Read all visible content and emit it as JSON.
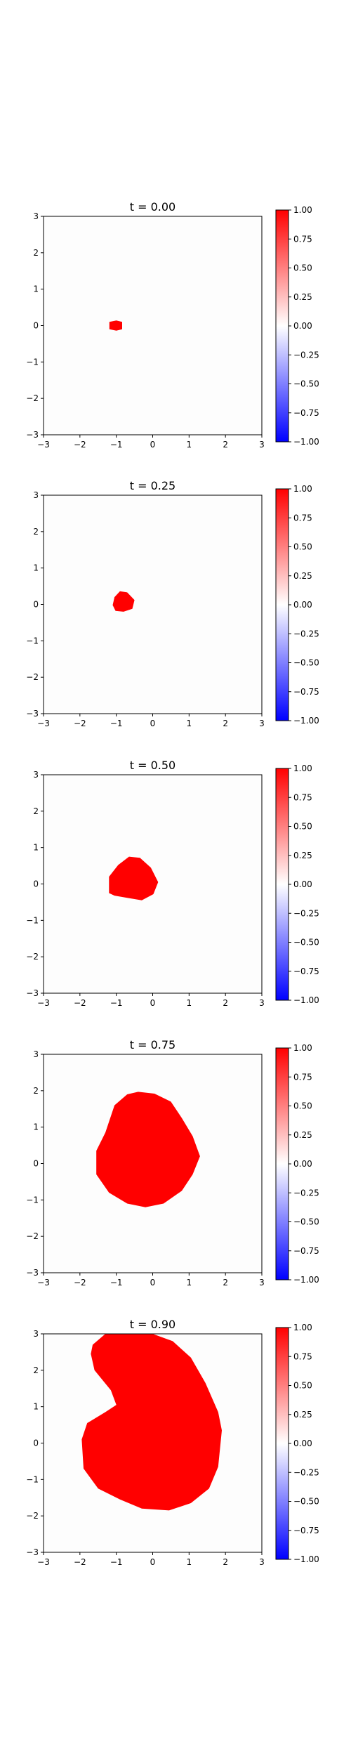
{
  "chart_data": [
    {
      "type": "heatmap",
      "title": "t = 0.00",
      "xlim": [
        -3,
        3
      ],
      "ylim": [
        -3,
        3
      ],
      "xticks": [
        "−3",
        "−2",
        "−1",
        "0",
        "1",
        "2",
        "3"
      ],
      "yticks": [
        "3",
        "2",
        "1",
        "0",
        "−1",
        "−2",
        "−3"
      ],
      "fill_color": "#ff0000",
      "region": [
        [
          -1.19,
          -0.1
        ],
        [
          -1.19,
          0.1
        ],
        [
          -1.0,
          0.14
        ],
        [
          -0.84,
          0.1
        ],
        [
          -0.84,
          -0.1
        ],
        [
          -1.0,
          -0.14
        ]
      ],
      "colorbar": {
        "vmin": -1.0,
        "vmax": 1.0,
        "ticks": [
          "1.00",
          "0.75",
          "0.50",
          "0.25",
          "0.00",
          "−0.25",
          "−0.50",
          "−0.75",
          "−1.00"
        ]
      }
    },
    {
      "type": "heatmap",
      "title": "t = 0.25",
      "xlim": [
        -3,
        3
      ],
      "ylim": [
        -3,
        3
      ],
      "xticks": [
        "−3",
        "−2",
        "−1",
        "0",
        "1",
        "2",
        "3"
      ],
      "yticks": [
        "3",
        "2",
        "1",
        "0",
        "−1",
        "−2",
        "−3"
      ],
      "fill_color": "#ff0000",
      "region": [
        [
          -1.1,
          -0.02
        ],
        [
          -1.05,
          0.2
        ],
        [
          -0.9,
          0.36
        ],
        [
          -0.7,
          0.33
        ],
        [
          -0.5,
          0.12
        ],
        [
          -0.56,
          -0.12
        ],
        [
          -0.8,
          -0.2
        ],
        [
          -1.02,
          -0.18
        ]
      ],
      "colorbar": {
        "vmin": -1.0,
        "vmax": 1.0,
        "ticks": [
          "1.00",
          "0.75",
          "0.50",
          "0.25",
          "0.00",
          "−0.25",
          "−0.50",
          "−0.75",
          "−1.00"
        ]
      }
    },
    {
      "type": "heatmap",
      "title": "t = 0.50",
      "xlim": [
        -3,
        3
      ],
      "ylim": [
        -3,
        3
      ],
      "xticks": [
        "−3",
        "−2",
        "−1",
        "0",
        "1",
        "2",
        "3"
      ],
      "yticks": [
        "3",
        "2",
        "1",
        "0",
        "−1",
        "−2",
        "−3"
      ],
      "fill_color": "#ff0000",
      "region": [
        [
          -1.2,
          -0.25
        ],
        [
          -1.2,
          0.2
        ],
        [
          -0.95,
          0.52
        ],
        [
          -0.65,
          0.75
        ],
        [
          -0.35,
          0.72
        ],
        [
          -0.05,
          0.45
        ],
        [
          0.15,
          0.05
        ],
        [
          0.02,
          -0.28
        ],
        [
          -0.3,
          -0.45
        ],
        [
          -0.7,
          -0.38
        ],
        [
          -1.05,
          -0.32
        ]
      ],
      "colorbar": {
        "vmin": -1.0,
        "vmax": 1.0,
        "ticks": [
          "1.00",
          "0.75",
          "0.50",
          "0.25",
          "0.00",
          "−0.25",
          "−0.50",
          "−0.75",
          "−1.00"
        ]
      }
    },
    {
      "type": "heatmap",
      "title": "t = 0.75",
      "xlim": [
        -3,
        3
      ],
      "ylim": [
        -3,
        3
      ],
      "xticks": [
        "−3",
        "−2",
        "−1",
        "0",
        "1",
        "2",
        "3"
      ],
      "yticks": [
        "3",
        "2",
        "1",
        "0",
        "−1",
        "−2",
        "−3"
      ],
      "fill_color": "#ff0000",
      "region": [
        [
          -1.55,
          -0.3
        ],
        [
          -1.55,
          0.35
        ],
        [
          -1.3,
          0.85
        ],
        [
          -1.05,
          1.6
        ],
        [
          -0.7,
          1.9
        ],
        [
          -0.4,
          1.97
        ],
        [
          0.05,
          1.92
        ],
        [
          0.5,
          1.7
        ],
        [
          0.8,
          1.25
        ],
        [
          1.1,
          0.75
        ],
        [
          1.3,
          0.2
        ],
        [
          1.1,
          -0.3
        ],
        [
          0.8,
          -0.75
        ],
        [
          0.3,
          -1.1
        ],
        [
          -0.2,
          -1.2
        ],
        [
          -0.7,
          -1.1
        ],
        [
          -1.2,
          -0.8
        ]
      ],
      "colorbar": {
        "vmin": -1.0,
        "vmax": 1.0,
        "ticks": [
          "1.00",
          "0.75",
          "0.50",
          "0.25",
          "0.00",
          "−0.25",
          "−0.50",
          "−0.75",
          "−1.00"
        ]
      }
    },
    {
      "type": "heatmap",
      "title": "t = 0.90",
      "xlim": [
        -3,
        3
      ],
      "ylim": [
        -3,
        3
      ],
      "xticks": [
        "−3",
        "−2",
        "−1",
        "0",
        "1",
        "2",
        "3"
      ],
      "yticks": [
        "3",
        "2",
        "1",
        "0",
        "−1",
        "−2",
        "−3"
      ],
      "fill_color": "#ff0000",
      "region": [
        [
          -1.65,
          2.7
        ],
        [
          -1.3,
          3.0
        ],
        [
          0.0,
          3.0
        ],
        [
          0.55,
          2.8
        ],
        [
          1.05,
          2.35
        ],
        [
          1.45,
          1.65
        ],
        [
          1.8,
          0.85
        ],
        [
          1.9,
          0.35
        ],
        [
          1.8,
          -0.65
        ],
        [
          1.55,
          -1.25
        ],
        [
          1.05,
          -1.65
        ],
        [
          0.45,
          -1.85
        ],
        [
          -0.3,
          -1.8
        ],
        [
          -0.9,
          -1.55
        ],
        [
          -1.5,
          -1.25
        ],
        [
          -1.9,
          -0.7
        ],
        [
          -1.95,
          0.1
        ],
        [
          -1.8,
          0.55
        ],
        [
          -1.3,
          0.85
        ],
        [
          -1.0,
          1.05
        ],
        [
          -1.15,
          1.45
        ],
        [
          -1.6,
          2.0
        ],
        [
          -1.7,
          2.45
        ]
      ],
      "colorbar": {
        "vmin": -1.0,
        "vmax": 1.0,
        "ticks": [
          "1.00",
          "0.75",
          "0.50",
          "0.25",
          "0.00",
          "−0.25",
          "−0.50",
          "−0.75",
          "−1.00"
        ]
      }
    }
  ]
}
